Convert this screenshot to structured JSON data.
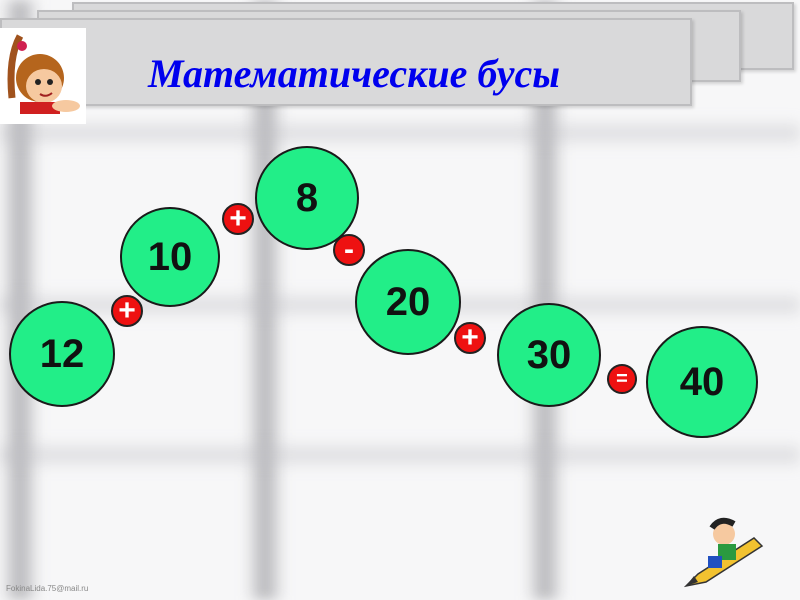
{
  "slide": {
    "title": "Математические бусы",
    "credit": "FokinaLida.75@mail.ru",
    "beads": [
      {
        "value": "12"
      },
      {
        "value": "10"
      },
      {
        "value": "8"
      },
      {
        "value": "20"
      },
      {
        "value": "30"
      },
      {
        "value": "40"
      }
    ],
    "operators": [
      {
        "symbol": "+"
      },
      {
        "symbol": "+"
      },
      {
        "symbol": "-"
      },
      {
        "symbol": "+"
      },
      {
        "symbol": "="
      }
    ],
    "colors": {
      "bead": "#22ee88",
      "operator": "#ee1111",
      "title": "#0000ee"
    }
  }
}
